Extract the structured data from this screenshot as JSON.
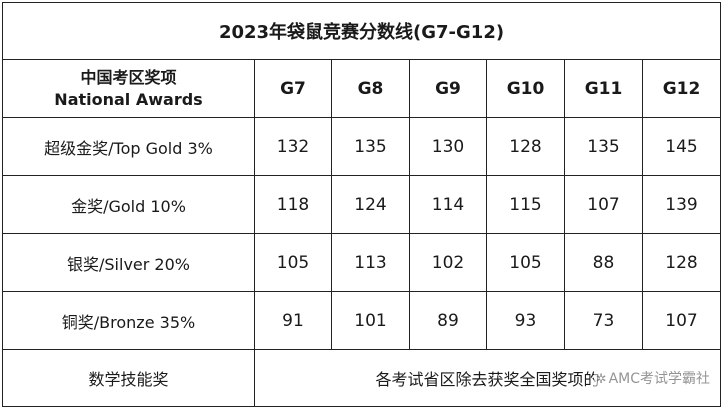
{
  "title": "2023年袋鼠竞赛分数线(G7-G12)",
  "header": {
    "award_cn": "中国考区奖项",
    "award_en": "National Awards",
    "grades": [
      "G7",
      "G8",
      "G9",
      "G10",
      "G11",
      "G12"
    ]
  },
  "rows": [
    {
      "award": "超级金奖/Top Gold 3%",
      "scores": [
        "132",
        "135",
        "130",
        "128",
        "135",
        "145"
      ]
    },
    {
      "award": "金奖/Gold 10%",
      "scores": [
        "118",
        "124",
        "114",
        "115",
        "107",
        "139"
      ]
    },
    {
      "award": "银奖/Silver 20%",
      "scores": [
        "105",
        "113",
        "102",
        "105",
        "88",
        "128"
      ]
    },
    {
      "award": "铜奖/Bronze 35%",
      "scores": [
        "91",
        "101",
        "89",
        "93",
        "73",
        "107"
      ]
    }
  ],
  "footer": {
    "label": "数学技能奖",
    "note": "各考试省区除去获奖全国奖项的"
  },
  "watermark": {
    "icon": "logo-icon",
    "text": "AMC考试学霸社"
  }
}
